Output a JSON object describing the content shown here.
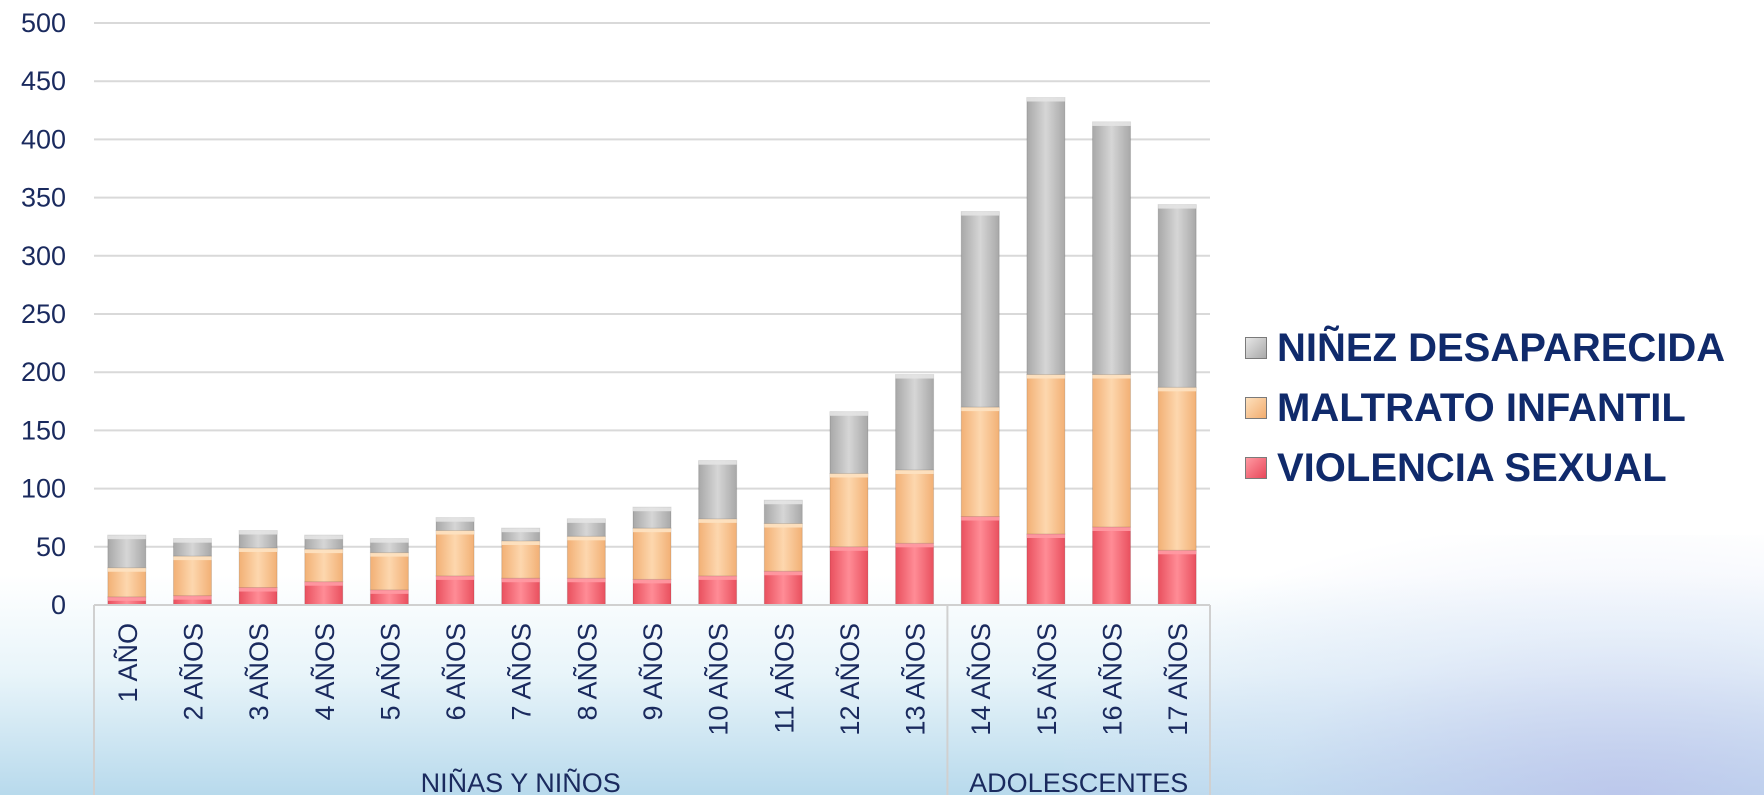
{
  "chart_data": {
    "type": "bar",
    "stacked": true,
    "categories": [
      "1 AÑO",
      "2 AÑOS",
      "3 AÑOS",
      "4 AÑOS",
      "5 AÑOS",
      "6 AÑOS",
      "7 AÑOS",
      "8 AÑOS",
      "9 AÑOS",
      "10 AÑOS",
      "11 AÑOS",
      "12 AÑOS",
      "13 AÑOS",
      "14 AÑOS",
      "15 AÑOS",
      "16 AÑOS",
      "17 AÑOS"
    ],
    "groups": [
      {
        "label": "NIÑAS Y NIÑOS",
        "count": 13
      },
      {
        "label": "ADOLESCENTES",
        "count": 4
      }
    ],
    "series": [
      {
        "name": "VIOLENCIA SEXUAL",
        "color": "#f26d7a",
        "values": [
          7,
          8,
          15,
          20,
          13,
          25,
          23,
          23,
          22,
          25,
          29,
          50,
          53,
          76,
          61,
          67,
          47
        ]
      },
      {
        "name": "MALTRATO INFANTIL",
        "color": "#f9c490",
        "values": [
          25,
          34,
          34,
          28,
          32,
          39,
          32,
          36,
          44,
          49,
          41,
          63,
          63,
          94,
          137,
          131,
          140
        ]
      },
      {
        "name": "NIÑEZ DESAPARECIDA",
        "color": "#c4c4c4",
        "values": [
          28,
          15,
          15,
          12,
          12,
          11,
          11,
          15,
          18,
          50,
          20,
          53,
          82,
          168,
          238,
          217,
          157
        ]
      }
    ],
    "yticks": [
      0,
      50,
      100,
      150,
      200,
      250,
      300,
      350,
      400,
      450,
      500
    ],
    "ylim": [
      0,
      500
    ],
    "grid": true,
    "legend_position": "right"
  }
}
